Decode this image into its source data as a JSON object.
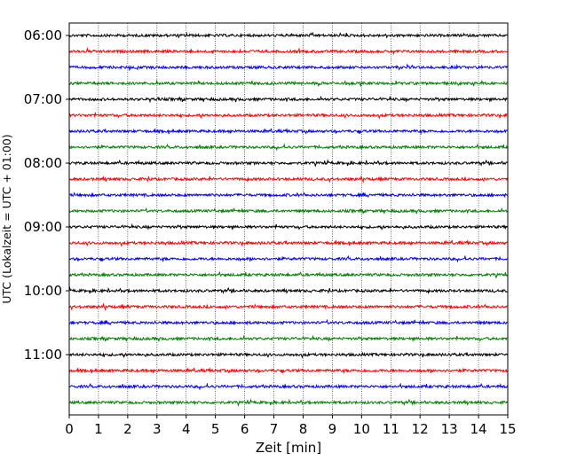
{
  "chart_data": {
    "type": "line",
    "title": "",
    "xlabel": "Zeit  [min]",
    "ylabel": "UTC (Lokalzeit = UTC + 01:00)",
    "xlim": [
      0,
      15
    ],
    "x_ticks": [
      "0",
      "1",
      "2",
      "3",
      "4",
      "5",
      "6",
      "7",
      "8",
      "9",
      "10",
      "11",
      "12",
      "13",
      "14",
      "15"
    ],
    "y_ticks": [
      "06:00",
      "07:00",
      "08:00",
      "09:00",
      "10:00",
      "11:00"
    ],
    "row_start_time": "06:00",
    "row_interval_minutes": 15,
    "row_count": 24,
    "row_colors": [
      "#000000",
      "#ff0000",
      "#0000ff",
      "#008000"
    ],
    "grid_x": true,
    "legend": "none"
  }
}
